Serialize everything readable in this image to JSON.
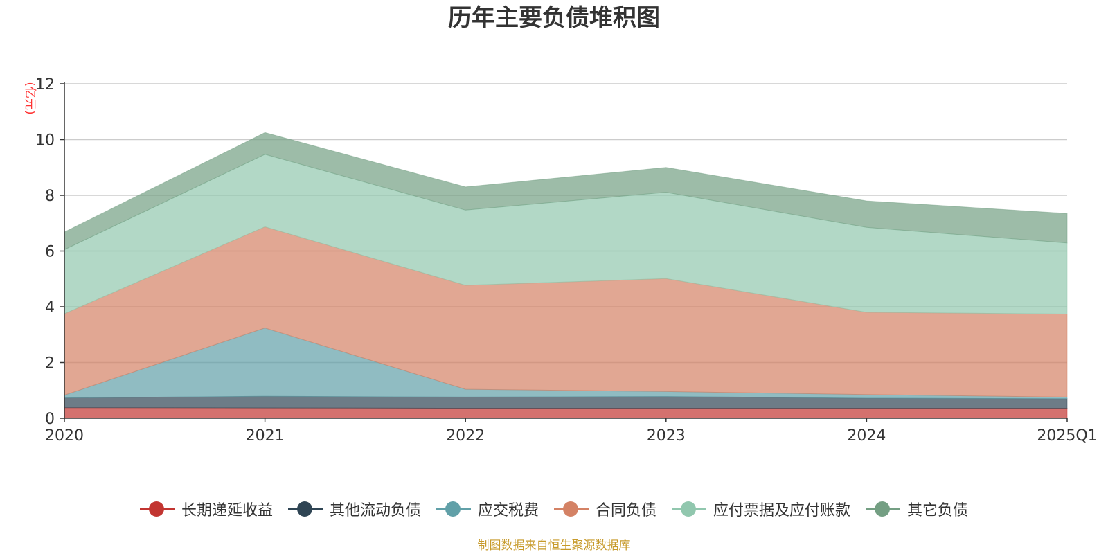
{
  "chart_data": {
    "type": "area",
    "stacked": true,
    "title": "历年主要负债堆积图",
    "ylabel": "(亿元)",
    "xlabel": "",
    "categories": [
      "2020",
      "2021",
      "2022",
      "2023",
      "2024",
      "2025Q1"
    ],
    "ylim": [
      0,
      12
    ],
    "yticks": [
      0,
      2,
      4,
      6,
      8,
      10,
      12
    ],
    "grid": true,
    "legend_position": "bottom",
    "series": [
      {
        "name": "长期递延收益",
        "color": "#c23531",
        "values": [
          0.38,
          0.37,
          0.36,
          0.36,
          0.36,
          0.36
        ]
      },
      {
        "name": "其他流动负债",
        "color": "#2f4554",
        "values": [
          0.35,
          0.42,
          0.4,
          0.42,
          0.36,
          0.34
        ]
      },
      {
        "name": "应交税费",
        "color": "#61a0a8",
        "values": [
          0.1,
          2.45,
          0.28,
          0.18,
          0.13,
          0.06
        ]
      },
      {
        "name": "合同负债",
        "color": "#d48265",
        "values": [
          2.92,
          3.63,
          3.73,
          4.05,
          2.95,
          2.98
        ]
      },
      {
        "name": "应付票据及应付账款",
        "color": "#91c7ae",
        "values": [
          2.3,
          2.6,
          2.7,
          3.1,
          3.05,
          2.55
        ]
      },
      {
        "name": "其它负债",
        "color": "#749f83",
        "values": [
          0.63,
          0.78,
          0.83,
          0.89,
          0.95,
          1.06
        ]
      }
    ]
  },
  "source_note": "制图数据来自恒生聚源数据库"
}
